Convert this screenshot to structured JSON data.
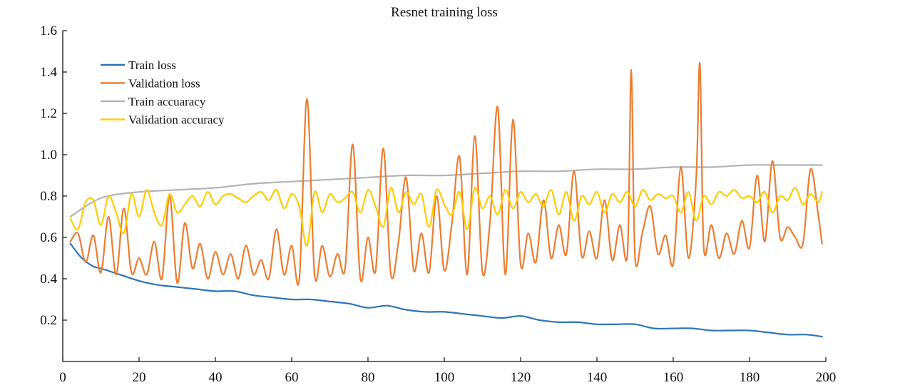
{
  "chart_data": {
    "type": "line",
    "title": "Resnet training loss",
    "xlabel": "",
    "ylabel": "",
    "xlim": [
      0,
      200
    ],
    "ylim": [
      0,
      1.6
    ],
    "x_ticks": [
      0,
      20,
      40,
      60,
      80,
      100,
      120,
      140,
      160,
      180,
      200
    ],
    "y_ticks": [
      0.2,
      0.4,
      0.6,
      0.8,
      1.0,
      1.2,
      1.4,
      1.6
    ],
    "y_tick_labels": [
      "0.2",
      "0.4",
      "0.6",
      "0.8",
      "1.0",
      "1.2",
      "1.4",
      "1.6"
    ],
    "grid": false,
    "legend_position": "top-left",
    "series": [
      {
        "name": "Train loss",
        "color": "#2e75b6",
        "x": [
          2,
          5,
          8,
          10,
          15,
          20,
          25,
          30,
          35,
          40,
          45,
          50,
          55,
          60,
          65,
          70,
          75,
          80,
          85,
          90,
          95,
          100,
          105,
          110,
          115,
          120,
          125,
          130,
          135,
          140,
          145,
          150,
          155,
          160,
          165,
          170,
          175,
          180,
          185,
          190,
          195,
          199
        ],
        "y": [
          0.57,
          0.5,
          0.46,
          0.45,
          0.42,
          0.39,
          0.37,
          0.36,
          0.35,
          0.34,
          0.34,
          0.32,
          0.31,
          0.3,
          0.3,
          0.29,
          0.28,
          0.26,
          0.27,
          0.25,
          0.24,
          0.24,
          0.23,
          0.22,
          0.21,
          0.22,
          0.2,
          0.19,
          0.19,
          0.18,
          0.18,
          0.18,
          0.16,
          0.16,
          0.16,
          0.15,
          0.15,
          0.15,
          0.14,
          0.13,
          0.13,
          0.12
        ]
      },
      {
        "name": "Validation loss",
        "color": "#ed7d31",
        "x": [
          2,
          4,
          6,
          8,
          10,
          12,
          14,
          16,
          18,
          20,
          22,
          24,
          26,
          28,
          30,
          32,
          34,
          36,
          38,
          40,
          42,
          44,
          46,
          48,
          50,
          52,
          54,
          56,
          58,
          60,
          62,
          64,
          66,
          68,
          70,
          72,
          74,
          76,
          78,
          80,
          82,
          84,
          86,
          88,
          90,
          92,
          94,
          96,
          98,
          100,
          102,
          104,
          106,
          108,
          110,
          112,
          114,
          116,
          118,
          120,
          122,
          124,
          126,
          128,
          130,
          132,
          134,
          136,
          138,
          140,
          142,
          144,
          146,
          148,
          149,
          150,
          152,
          154,
          156,
          158,
          160,
          162,
          164,
          166,
          167,
          168,
          170,
          172,
          174,
          176,
          178,
          180,
          182,
          184,
          186,
          188,
          190,
          192,
          194,
          196,
          198,
          199
        ],
        "y": [
          0.58,
          0.62,
          0.48,
          0.61,
          0.43,
          0.7,
          0.42,
          0.74,
          0.43,
          0.5,
          0.42,
          0.58,
          0.4,
          0.8,
          0.38,
          0.67,
          0.45,
          0.57,
          0.4,
          0.53,
          0.42,
          0.52,
          0.4,
          0.56,
          0.42,
          0.49,
          0.4,
          0.64,
          0.42,
          0.56,
          0.4,
          1.27,
          0.42,
          0.56,
          0.41,
          0.52,
          0.45,
          1.05,
          0.4,
          0.6,
          0.44,
          1.03,
          0.42,
          0.58,
          0.89,
          0.44,
          0.62,
          0.43,
          0.8,
          0.44,
          0.67,
          0.99,
          0.42,
          1.09,
          0.43,
          0.68,
          1.23,
          0.42,
          1.17,
          0.47,
          0.62,
          0.48,
          0.78,
          0.5,
          0.66,
          0.52,
          0.92,
          0.51,
          0.63,
          0.5,
          0.78,
          0.49,
          0.66,
          0.52,
          1.41,
          0.5,
          0.63,
          0.75,
          0.52,
          0.61,
          0.47,
          0.94,
          0.5,
          0.88,
          1.44,
          0.55,
          0.66,
          0.5,
          0.62,
          0.52,
          0.68,
          0.55,
          0.9,
          0.58,
          0.97,
          0.6,
          0.65,
          0.6,
          0.57,
          0.93,
          0.71,
          0.57
        ]
      },
      {
        "name": "Train accuaracy",
        "color": "#b4b4b4",
        "x": [
          2,
          10,
          20,
          30,
          40,
          50,
          60,
          70,
          80,
          90,
          100,
          110,
          120,
          130,
          140,
          150,
          160,
          170,
          180,
          190,
          199
        ],
        "y": [
          0.7,
          0.79,
          0.82,
          0.83,
          0.84,
          0.86,
          0.87,
          0.88,
          0.89,
          0.9,
          0.9,
          0.91,
          0.92,
          0.92,
          0.93,
          0.93,
          0.94,
          0.94,
          0.95,
          0.95,
          0.95
        ]
      },
      {
        "name": "Validation accuracy",
        "color": "#ffcc00",
        "x": [
          2,
          4,
          6,
          8,
          10,
          12,
          14,
          16,
          18,
          20,
          22,
          24,
          26,
          28,
          30,
          32,
          34,
          36,
          38,
          40,
          42,
          44,
          46,
          48,
          50,
          52,
          54,
          56,
          58,
          60,
          62,
          64,
          66,
          68,
          70,
          72,
          74,
          76,
          78,
          80,
          82,
          84,
          86,
          88,
          90,
          92,
          94,
          96,
          98,
          100,
          102,
          104,
          106,
          108,
          110,
          112,
          114,
          116,
          118,
          120,
          122,
          124,
          126,
          128,
          130,
          132,
          134,
          136,
          138,
          140,
          142,
          144,
          146,
          148,
          150,
          152,
          154,
          156,
          158,
          160,
          162,
          164,
          166,
          168,
          170,
          172,
          174,
          176,
          178,
          180,
          182,
          184,
          186,
          188,
          190,
          192,
          194,
          196,
          198,
          199
        ],
        "y": [
          0.69,
          0.64,
          0.77,
          0.78,
          0.66,
          0.8,
          0.72,
          0.62,
          0.81,
          0.7,
          0.83,
          0.72,
          0.66,
          0.81,
          0.72,
          0.76,
          0.8,
          0.75,
          0.82,
          0.76,
          0.8,
          0.81,
          0.79,
          0.77,
          0.8,
          0.82,
          0.78,
          0.83,
          0.74,
          0.81,
          0.75,
          0.56,
          0.82,
          0.72,
          0.81,
          0.77,
          0.79,
          0.82,
          0.72,
          0.83,
          0.75,
          0.65,
          0.84,
          0.72,
          0.82,
          0.76,
          0.81,
          0.65,
          0.83,
          0.76,
          0.71,
          0.82,
          0.64,
          0.84,
          0.74,
          0.8,
          0.71,
          0.83,
          0.74,
          0.82,
          0.77,
          0.81,
          0.75,
          0.83,
          0.71,
          0.82,
          0.68,
          0.8,
          0.76,
          0.82,
          0.72,
          0.81,
          0.77,
          0.82,
          0.75,
          0.83,
          0.78,
          0.81,
          0.79,
          0.8,
          0.72,
          0.82,
          0.68,
          0.8,
          0.76,
          0.82,
          0.8,
          0.83,
          0.79,
          0.8,
          0.77,
          0.82,
          0.72,
          0.8,
          0.78,
          0.84,
          0.76,
          0.81,
          0.77,
          0.82
        ]
      }
    ]
  }
}
